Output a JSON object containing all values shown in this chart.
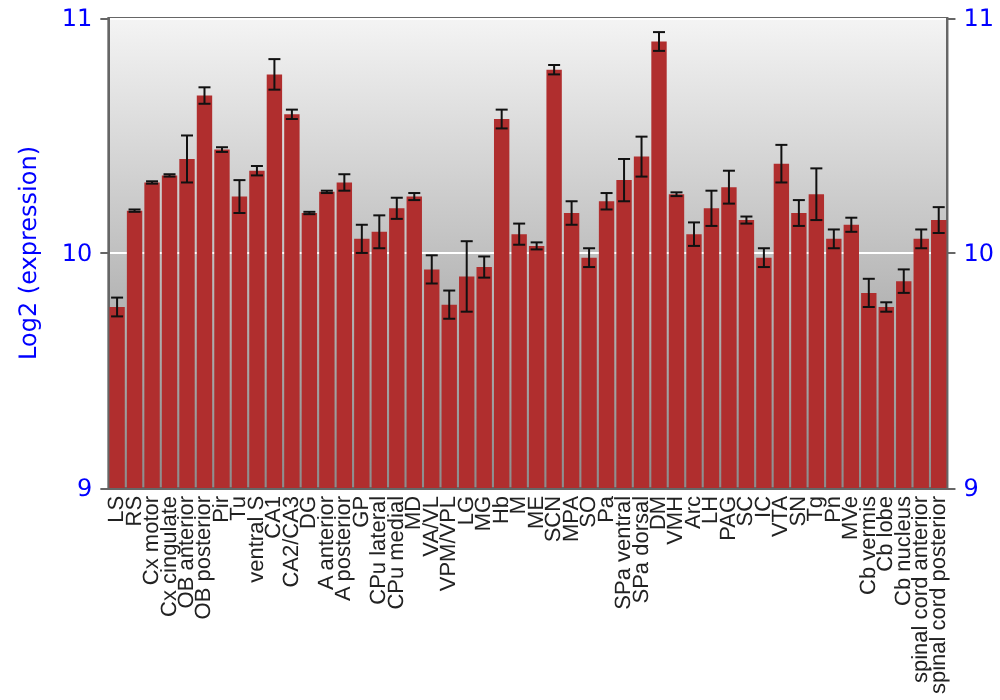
{
  "chart_data": {
    "type": "bar",
    "ylabel": "Log2 (expression)",
    "categories": [
      "LS",
      "RS",
      "Cx motor",
      "Cx cingulate",
      "OB anterior",
      "OB posterior",
      "Pir",
      "Tu",
      "ventral S",
      "CA1",
      "CA2/CA3",
      "DG",
      "A anterior",
      "A posterior",
      "GP",
      "CPu lateral",
      "CPu medial",
      "MD",
      "VA/VL",
      "VPM/VPL",
      "LG",
      "MG",
      "Hb",
      "M",
      "ME",
      "SCN",
      "MPA",
      "SO",
      "Pa",
      "SPa ventral",
      "SPa dorsal",
      "DM",
      "VMH",
      "Arc",
      "LH",
      "PAG",
      "SC",
      "IC",
      "VTA",
      "SN",
      "Tg",
      "Pn",
      "MVe",
      "Cb vermis",
      "Cb lobe",
      "Cb nucleus",
      "spinal cord anterior",
      "spinal cord posterior"
    ],
    "values": [
      9.77,
      10.18,
      10.3,
      10.33,
      10.4,
      10.67,
      10.44,
      10.24,
      10.35,
      10.76,
      10.59,
      10.17,
      10.26,
      10.3,
      10.06,
      10.09,
      10.19,
      10.24,
      9.93,
      9.78,
      9.9,
      9.94,
      10.57,
      10.08,
      10.03,
      10.78,
      10.17,
      9.98,
      10.22,
      10.31,
      10.41,
      10.9,
      10.25,
      10.08,
      10.19,
      10.28,
      10.14,
      9.98,
      10.38,
      10.17,
      10.25,
      10.06,
      10.12,
      9.83,
      9.77,
      9.88,
      10.06,
      10.14
    ],
    "errors": [
      0.04,
      0.005,
      0.005,
      0.005,
      0.1,
      0.035,
      0.01,
      0.07,
      0.02,
      0.065,
      0.02,
      0.005,
      0.005,
      0.035,
      0.06,
      0.07,
      0.045,
      0.015,
      0.06,
      0.06,
      0.15,
      0.045,
      0.04,
      0.045,
      0.015,
      0.02,
      0.05,
      0.04,
      0.035,
      0.09,
      0.085,
      0.04,
      0.008,
      0.05,
      0.075,
      0.07,
      0.015,
      0.04,
      0.08,
      0.055,
      0.11,
      0.04,
      0.03,
      0.06,
      0.02,
      0.05,
      0.04,
      0.055
    ],
    "color": "#b02e2e",
    "ylim": [
      9,
      11
    ],
    "yticks": [
      9,
      10,
      11
    ],
    "y2lim": [
      9,
      11
    ],
    "y2ticks": [
      9,
      10,
      11
    ],
    "grid": "y"
  }
}
